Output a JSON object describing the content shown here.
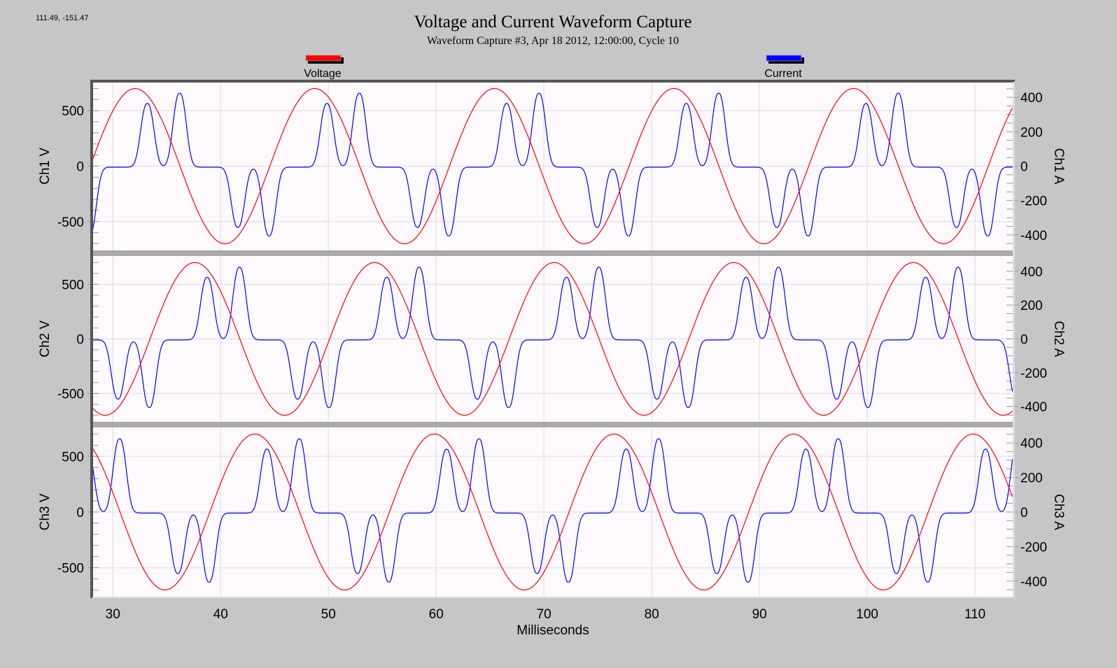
{
  "readout": "111.49, -151.47",
  "chart_data": {
    "type": "line",
    "title": "Voltage and Current Waveform Capture",
    "subtitle": "Waveform Capture #3, Apr 18 2012, 12:00:00,  Cycle 10",
    "xlabel": "Milliseconds",
    "xlim": [
      28.1,
      113.5
    ],
    "xticks": [
      30,
      40,
      50,
      60,
      70,
      80,
      90,
      100,
      110
    ],
    "grid": true,
    "legend": {
      "position": "top",
      "entries": [
        {
          "name": "Voltage",
          "color": "#ff0000"
        },
        {
          "name": "Current",
          "color": "#0000ff"
        }
      ]
    },
    "panels": [
      {
        "ylabel_left": "Ch1 V",
        "ylabel_right": "Ch1 A",
        "ylim_left": [
          -760,
          760
        ],
        "yticks_left": [
          500,
          0,
          -500
        ],
        "ylim_right": [
          -490,
          490
        ],
        "yticks_right": [
          400,
          200,
          0,
          -200,
          -400
        ],
        "phase_offset_ms": 0
      },
      {
        "ylabel_left": "Ch2 V",
        "ylabel_right": "Ch2 A",
        "ylim_left": [
          -760,
          760
        ],
        "yticks_left": [
          500,
          0,
          -500
        ],
        "ylim_right": [
          -490,
          490
        ],
        "yticks_right": [
          400,
          200,
          0,
          -200,
          -400
        ],
        "phase_offset_ms": 5.55
      },
      {
        "ylabel_left": "Ch3 V",
        "ylabel_right": "Ch3 A",
        "ylim_left": [
          -760,
          760
        ],
        "yticks_left": [
          500,
          0,
          -500
        ],
        "ylim_right": [
          -490,
          490
        ],
        "yticks_right": [
          400,
          200,
          0,
          -200,
          -400
        ],
        "phase_offset_ms": 11.1
      }
    ],
    "series": [
      {
        "name": "Voltage",
        "axis": "left",
        "unit": "V",
        "color": "#ff0000",
        "waveform": "sine",
        "amplitude": 700,
        "frequency_Hz": 60,
        "zero_crossing_rising_ms": 27.9
      },
      {
        "name": "Current",
        "axis": "right",
        "unit": "A",
        "color": "#0000ff",
        "waveform": "pulse-train",
        "period_ms": 16.67,
        "baseline": -6,
        "pulse_width_ms": 0.8,
        "pulses": [
          [
            33.2,
            370
          ],
          [
            36.2,
            430
          ],
          [
            41.6,
            -350
          ],
          [
            44.5,
            -400
          ]
        ]
      }
    ]
  }
}
